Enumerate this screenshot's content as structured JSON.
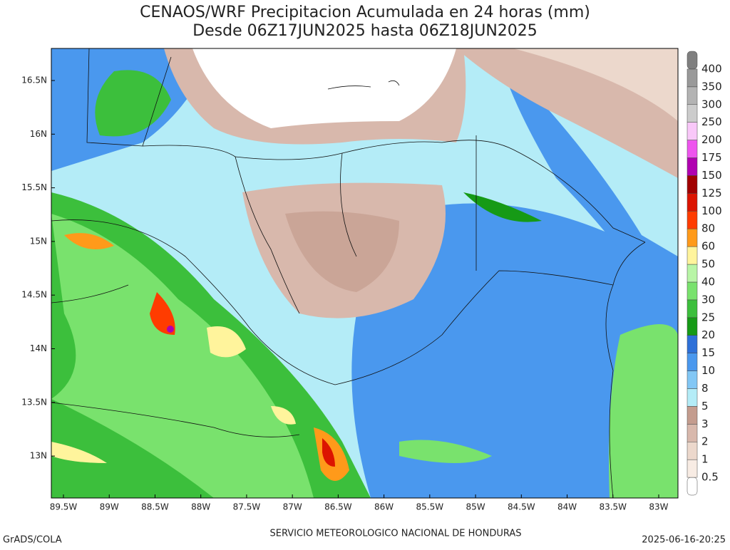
{
  "title": [
    "CENAOS/WRF Precipitacion Acumulada en 24 horas (mm)",
    "Desde 06Z17JUN2025 hasta 06Z18JUN2025"
  ],
  "lat_labels": [
    "16.5N",
    "16N",
    "15.5N",
    "15N",
    "14.5N",
    "14N",
    "13.5N",
    "13N"
  ],
  "lon_labels": [
    "89.5W",
    "89W",
    "88.5W",
    "88W",
    "87.5W",
    "87W",
    "86.5W",
    "86W",
    "85.5W",
    "85W",
    "84.5W",
    "84W",
    "83.5W",
    "83W"
  ],
  "colorbar": {
    "labels": [
      0.5,
      1,
      2,
      3,
      5,
      8,
      10,
      15,
      20,
      25,
      30,
      40,
      50,
      60,
      80,
      100,
      125,
      150,
      175,
      200,
      250,
      300,
      350,
      400
    ],
    "colors": [
      "#ffffff",
      "#f8ece4",
      "#ecd8cc",
      "#d8b8ac",
      "#c49c8e",
      "#b4ecf7",
      "#82c7f5",
      "#4a98ee",
      "#2e70d8",
      "#169a16",
      "#3cbf3c",
      "#79e26d",
      "#b8f5a6",
      "#fff49c",
      "#ff9a1a",
      "#ff3c00",
      "#dc1400",
      "#a10000",
      "#b000b0",
      "#ee55ee",
      "#f9c8f9",
      "#cccccc",
      "#b3b3b3",
      "#999999",
      "#7f7f7f"
    ]
  },
  "footer": {
    "left": "GrADS/COLA",
    "center": "SERVICIO METEOROLOGICO NACIONAL DE HONDURAS",
    "right": "2025-06-16-20:25"
  }
}
